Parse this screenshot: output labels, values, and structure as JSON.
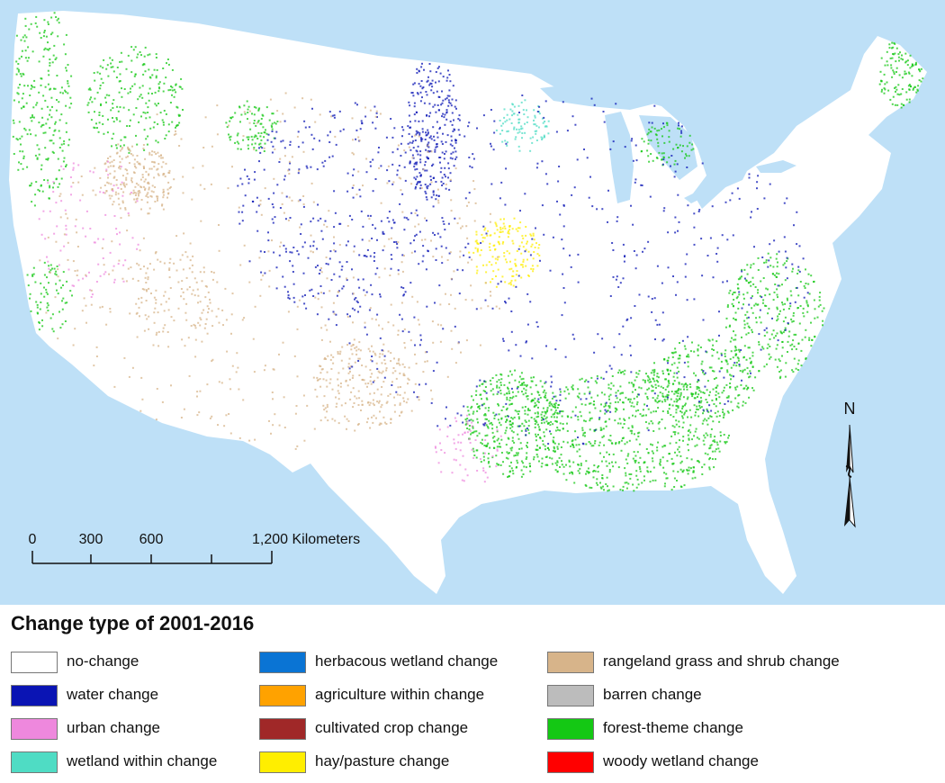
{
  "map": {
    "compass_label": "N",
    "scale_ticks": [
      "0",
      "300",
      "600"
    ],
    "scale_end_label": "1,200 Kilometers"
  },
  "legend": {
    "title": "Change type of 2001-2016",
    "items": [
      {
        "label": "no-change",
        "color": "#ffffff"
      },
      {
        "label": "water change",
        "color": "#0a14b4"
      },
      {
        "label": "urban change",
        "color": "#ee88dd"
      },
      {
        "label": "wetland within change",
        "color": "#4fdcc4"
      },
      {
        "label": "herbacous wetland change",
        "color": "#0a74d4"
      },
      {
        "label": "agriculture within change",
        "color": "#ffa200"
      },
      {
        "label": "cultivated crop change",
        "color": "#a02828"
      },
      {
        "label": "hay/pasture change",
        "color": "#ffee00"
      },
      {
        "label": "rangeland grass and shrub change",
        "color": "#d7b48a"
      },
      {
        "label": "barren change",
        "color": "#bcbcbc"
      },
      {
        "label": "forest-theme change",
        "color": "#14c814"
      },
      {
        "label": "woody wetland change",
        "color": "#ff0000"
      }
    ]
  },
  "colors": {
    "ocean": "#bee0f7",
    "land": "#ffffff"
  }
}
